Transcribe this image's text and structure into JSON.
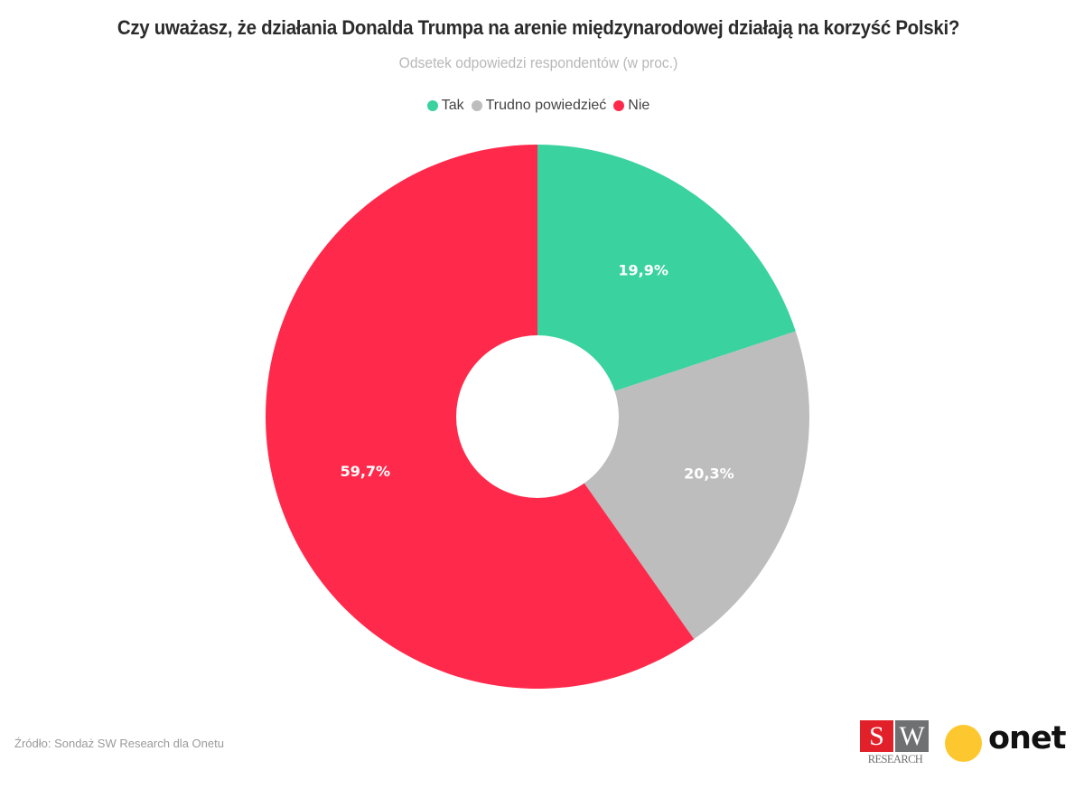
{
  "header": {
    "title": "Czy uważasz, że działania Donalda Trumpa na arenie międzynarodowej działają na korzyść Polski?",
    "subtitle": "Odsetek odpowiedzi respondentów (w proc.)"
  },
  "legend": [
    {
      "label": "Tak",
      "color": "#3ad29f"
    },
    {
      "label": "Trudno powiedzieć",
      "color": "#bdbdbd"
    },
    {
      "label": "Nie",
      "color": "#ff2a4b"
    }
  ],
  "chart_data": {
    "type": "pie",
    "variant": "donut",
    "title": "Czy uważasz, że działania Donalda Trumpa na arenie międzynarodowej działają na korzyść Polski?",
    "subtitle": "Odsetek odpowiedzi respondentów (w proc.)",
    "categories": [
      "Tak",
      "Trudno powiedzieć",
      "Nie"
    ],
    "values": [
      19.9,
      20.3,
      59.7
    ],
    "labels": [
      "19,9%",
      "20,3%",
      "59,7%"
    ],
    "colors": [
      "#3ad29f",
      "#bdbdbd",
      "#ff2a4b"
    ],
    "unit": "%",
    "start": "top",
    "direction": "clockwise",
    "legend_position": "top-center"
  },
  "footer": {
    "source": "Źródło: Sondaż SW Research dla Onetu",
    "sw_logo": {
      "letter_s": "S",
      "letter_w": "W",
      "caption": "RESEARCH",
      "red": "#e2202a",
      "gray": "#6f7072"
    },
    "onet_logo": {
      "text": "onet",
      "dot_color": "#fdc82f"
    }
  }
}
